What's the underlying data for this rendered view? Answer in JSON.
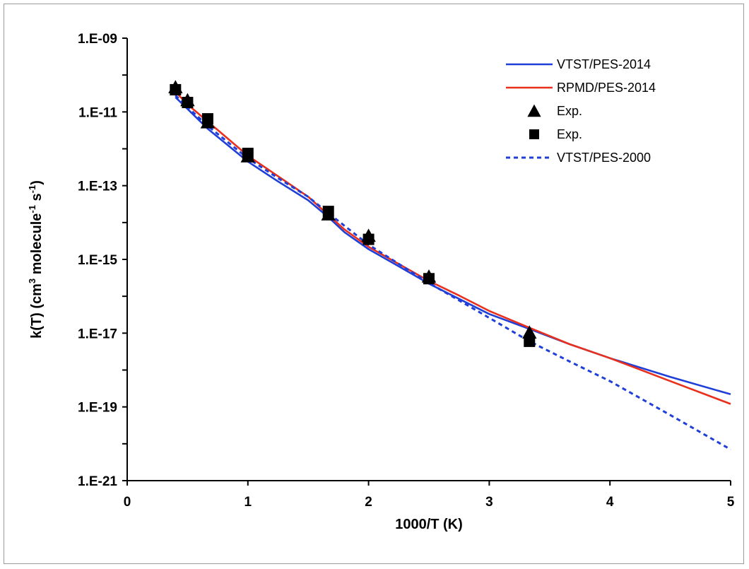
{
  "chart_data": {
    "type": "line",
    "title": "",
    "xlabel": "1000/T (K)",
    "ylabel": {
      "base": "k(T) (cm",
      "sup1": "3",
      "mid": " molecule",
      "sup2": "-1",
      "mid2": " s",
      "sup3": "-1",
      "end": ")"
    },
    "xlim": [
      0,
      5
    ],
    "ylim_log10": [
      -21,
      -9
    ],
    "y_scale": "log",
    "x_ticks": [
      "0",
      "1",
      "2",
      "3",
      "4",
      "5"
    ],
    "y_ticks": [
      "1.E-09",
      "1.E-11",
      "1.E-13",
      "1.E-15",
      "1.E-17",
      "1.E-19",
      "1.E-21"
    ],
    "grid": false,
    "legend_position": "top-right",
    "series": [
      {
        "name": "VTST/PES-2014",
        "style": "solid",
        "color": "#1f3fd8",
        "points": [
          [
            0.4,
            2.5e-11
          ],
          [
            0.5,
            1.2e-11
          ],
          [
            0.667,
            3.5e-12
          ],
          [
            1.0,
            4.5e-13
          ],
          [
            1.25,
            1.3e-13
          ],
          [
            1.5,
            4e-14
          ],
          [
            1.667,
            1.4e-14
          ],
          [
            1.8,
            5.5e-15
          ],
          [
            2.0,
            1.9e-15
          ],
          [
            2.25,
            6.5e-16
          ],
          [
            2.5,
            2.2e-16
          ],
          [
            2.75,
            8.5e-17
          ],
          [
            3.0,
            3.3e-17
          ],
          [
            3.333,
            1.3e-17
          ],
          [
            3.667,
            5e-18
          ],
          [
            4.0,
            2.1e-18
          ],
          [
            4.5,
            6.5e-19
          ],
          [
            5.0,
            2.2e-19
          ]
        ]
      },
      {
        "name": "RPMD/PES-2014",
        "style": "solid",
        "color": "#e8301c",
        "points": [
          [
            0.4,
            3.5e-11
          ],
          [
            0.5,
            1.6e-11
          ],
          [
            0.667,
            5.5e-12
          ],
          [
            1.0,
            6.5e-13
          ],
          [
            1.25,
            1.8e-13
          ],
          [
            1.5,
            5e-14
          ],
          [
            1.667,
            1.6e-14
          ],
          [
            1.8,
            6.5e-15
          ],
          [
            2.0,
            2.2e-15
          ],
          [
            2.25,
            7.5e-16
          ],
          [
            2.5,
            2.6e-16
          ],
          [
            2.75,
            1.05e-16
          ],
          [
            3.0,
            4e-17
          ],
          [
            3.333,
            1.4e-17
          ],
          [
            3.667,
            5e-18
          ],
          [
            4.0,
            2.1e-18
          ],
          [
            4.5,
            5e-19
          ],
          [
            5.0,
            1.2e-19
          ]
        ]
      },
      {
        "name": "VTST/PES-2000",
        "style": "dashed",
        "color": "#1f3fd8",
        "points": [
          [
            0.4,
            2.8e-11
          ],
          [
            0.5,
            1.35e-11
          ],
          [
            0.667,
            4.2e-12
          ],
          [
            1.0,
            5.5e-13
          ],
          [
            1.25,
            1.6e-13
          ],
          [
            1.5,
            5e-14
          ],
          [
            1.667,
            1.8e-14
          ],
          [
            2.0,
            2.5e-15
          ],
          [
            2.5,
            2.3e-16
          ],
          [
            3.0,
            2.6e-17
          ],
          [
            3.333,
            6e-18
          ],
          [
            3.667,
            1.7e-18
          ],
          [
            4.0,
            5e-19
          ],
          [
            4.5,
            6e-20
          ],
          [
            5.0,
            7e-21
          ]
        ]
      }
    ],
    "markers": [
      {
        "name": "Exp.",
        "symbol": "triangle",
        "color": "#000000",
        "points": [
          [
            0.4,
            4.5e-11
          ],
          [
            0.5,
            2e-11
          ],
          [
            0.667,
            5e-12
          ],
          [
            1.0,
            6e-13
          ],
          [
            1.667,
            1.6e-14
          ],
          [
            2.0,
            4.2e-15
          ],
          [
            2.5,
            3.3e-16
          ],
          [
            3.333,
            1e-17
          ]
        ]
      },
      {
        "name": "Exp.",
        "symbol": "square",
        "color": "#000000",
        "points": [
          [
            0.4,
            4e-11
          ],
          [
            0.5,
            1.8e-11
          ],
          [
            0.667,
            6.5e-12
          ],
          [
            1.0,
            7.5e-13
          ],
          [
            1.667,
            2e-14
          ],
          [
            2.0,
            3.5e-15
          ],
          [
            2.5,
            3e-16
          ],
          [
            3.333,
            6e-18
          ]
        ]
      }
    ],
    "legend_order": [
      "VTST/PES-2014",
      "RPMD/PES-2014",
      "Exp.",
      "Exp.",
      "VTST/PES-2000"
    ]
  }
}
